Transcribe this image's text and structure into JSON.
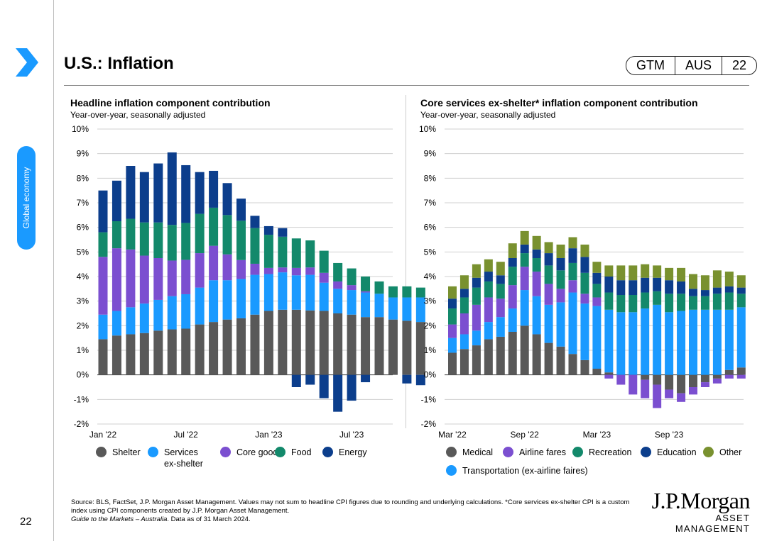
{
  "header": {
    "title": "U.S.: Inflation",
    "badge": [
      "GTM",
      "AUS",
      "22"
    ]
  },
  "sidebar": {
    "section_label": "Global economy",
    "page_number": "22"
  },
  "footer": {
    "source_line1": "Source: BLS, FactSet, J.P. Morgan Asset Management. Values may not sum to headline CPI figures due to rounding and underlying calculations. *Core services ex-shelter CPI is a custom index using CPI components created by J.P. Morgan Asset Management.",
    "guide": "Guide to the Markets – Australia",
    "data_as_of": ". Data as of 31 March 2024."
  },
  "logo": {
    "name": "J.P.Morgan",
    "sub": "ASSET MANAGEMENT"
  },
  "colors": {
    "shelter": "#595959",
    "services": "#1a9aff",
    "core_goods": "#7b4fd0",
    "food": "#13896b",
    "energy": "#0c3e8c",
    "medical": "#595959",
    "airline": "#7b4fd0",
    "transport": "#1a9aff",
    "recreation": "#13896b",
    "education": "#0c3e8c",
    "other": "#79912f"
  },
  "chart_data": [
    {
      "type": "bar",
      "stacked": true,
      "title": "Headline inflation component contribution",
      "subtitle": "Year-over-year, seasonally adjusted",
      "ylim": [
        -2,
        10
      ],
      "yticks": [
        "10%",
        "9%",
        "8%",
        "7%",
        "6%",
        "5%",
        "4%",
        "3%",
        "2%",
        "1%",
        "0%",
        "-1%",
        "-2%"
      ],
      "x_tick_labels": [
        {
          "label": "Jan '22",
          "index": 0
        },
        {
          "label": "Jul '22",
          "index": 6
        },
        {
          "label": "Jan '23",
          "index": 12
        },
        {
          "label": "Jul '23",
          "index": 18
        }
      ],
      "categories": [
        "Jan 22",
        "Feb 22",
        "Mar 22",
        "Apr 22",
        "May 22",
        "Jun 22",
        "Jul 22",
        "Aug 22",
        "Sep 22",
        "Oct 22",
        "Nov 22",
        "Dec 22",
        "Jan 23",
        "Feb 23",
        "Mar 23",
        "Apr 23",
        "May 23",
        "Jun 23",
        "Jul 23",
        "Aug 23",
        "Sep 23",
        "Oct 23",
        "Nov 23",
        "Dec 23"
      ],
      "series": [
        {
          "name": "Shelter",
          "color_key": "shelter",
          "values": [
            1.45,
            1.6,
            1.65,
            1.7,
            1.8,
            1.85,
            1.88,
            2.05,
            2.15,
            2.25,
            2.3,
            2.45,
            2.6,
            2.65,
            2.65,
            2.62,
            2.6,
            2.5,
            2.45,
            2.35,
            2.35,
            2.25,
            2.2,
            2.15
          ]
        },
        {
          "name": "Services ex-shelter",
          "color_key": "services",
          "values": [
            1.0,
            1.0,
            1.1,
            1.2,
            1.25,
            1.35,
            1.4,
            1.5,
            1.7,
            1.6,
            1.6,
            1.62,
            1.5,
            1.52,
            1.4,
            1.45,
            1.15,
            1.0,
            1.0,
            1.0,
            0.95,
            0.9,
            0.95,
            1.0
          ]
        },
        {
          "name": "Core goods",
          "color_key": "core_goods",
          "values": [
            2.35,
            2.55,
            2.35,
            1.95,
            1.7,
            1.45,
            1.4,
            1.4,
            1.4,
            1.05,
            0.77,
            0.45,
            0.25,
            0.2,
            0.3,
            0.3,
            0.4,
            0.3,
            0.2,
            0.05,
            0,
            0,
            0,
            0
          ]
        },
        {
          "name": "Food",
          "color_key": "food",
          "values": [
            1.0,
            1.1,
            1.25,
            1.35,
            1.45,
            1.45,
            1.5,
            1.6,
            1.55,
            1.6,
            1.6,
            1.45,
            1.35,
            1.25,
            1.2,
            1.1,
            0.9,
            0.75,
            0.68,
            0.6,
            0.5,
            0.45,
            0.45,
            0.4
          ]
        },
        {
          "name": "Energy",
          "color_key": "energy",
          "values": [
            1.7,
            1.65,
            2.15,
            2.05,
            2.4,
            2.95,
            2.35,
            1.7,
            1.5,
            1.3,
            0.9,
            0.5,
            0.35,
            0.35,
            0,
            0,
            0,
            0,
            0,
            0,
            0,
            0,
            0,
            0
          ]
        },
        {
          "name": "Energy (negative)",
          "color_key": "energy",
          "values": [
            0,
            0,
            0,
            0,
            0,
            0,
            0,
            0,
            0,
            0,
            0,
            0,
            0,
            0,
            -0.5,
            -0.4,
            -0.95,
            -1.5,
            -1.05,
            -0.3,
            0,
            0,
            -0.35,
            -0.42
          ]
        }
      ],
      "legend": [
        {
          "label": "Shelter",
          "color_key": "shelter"
        },
        {
          "label": "Services ex-shelter",
          "color_key": "services"
        },
        {
          "label": "Core goods",
          "color_key": "core_goods"
        },
        {
          "label": "Food",
          "color_key": "food"
        },
        {
          "label": "Energy",
          "color_key": "energy"
        }
      ]
    },
    {
      "type": "bar",
      "stacked": true,
      "title": "Core services ex-shelter* inflation component contribution",
      "subtitle": "Year-over-year, seasonally adjusted",
      "ylim": [
        -2,
        10
      ],
      "yticks": [
        "10%",
        "9%",
        "8%",
        "7%",
        "6%",
        "5%",
        "4%",
        "3%",
        "2%",
        "1%",
        "0%",
        "-1%",
        "-2%"
      ],
      "x_tick_labels": [
        {
          "label": "Mar '22",
          "index": 0
        },
        {
          "label": "Sep '22",
          "index": 6
        },
        {
          "label": "Mar '23",
          "index": 12
        },
        {
          "label": "Sep '23",
          "index": 18
        }
      ],
      "categories": [
        "Mar 22",
        "Apr 22",
        "May 22",
        "Jun 22",
        "Jul 22",
        "Aug 22",
        "Sep 22",
        "Oct 22",
        "Nov 22",
        "Dec 22",
        "Jan 23",
        "Feb 23",
        "Mar 23",
        "Apr 23",
        "May 23",
        "Jun 23",
        "Jul 23",
        "Aug 23",
        "Sep 23",
        "Oct 23",
        "Nov 23",
        "Dec 23",
        "Jan 24",
        "Feb 24",
        "Mar 24"
      ],
      "series": [
        {
          "name": "Medical",
          "color_key": "medical",
          "values": [
            0.9,
            1.05,
            1.2,
            1.45,
            1.55,
            1.75,
            2.0,
            1.65,
            1.3,
            1.15,
            0.85,
            0.6,
            0.25,
            0.1,
            0,
            0,
            0,
            0,
            0,
            0,
            0,
            0,
            0,
            0.2,
            0.3
          ]
        },
        {
          "name": "Medical (negative)",
          "color_key": "medical",
          "values": [
            0,
            0,
            0,
            0,
            0,
            0,
            0,
            0,
            0,
            0,
            0,
            0,
            0,
            0,
            0,
            0,
            -0.2,
            -0.4,
            -0.6,
            -0.75,
            -0.5,
            -0.3,
            -0.15,
            0,
            0
          ]
        },
        {
          "name": "Transportation (ex-airline faires)",
          "color_key": "transport",
          "values": [
            0.6,
            0.6,
            0.6,
            0.7,
            0.8,
            0.95,
            1.45,
            1.55,
            1.55,
            1.8,
            2.5,
            2.3,
            2.55,
            2.55,
            2.55,
            2.55,
            2.7,
            2.85,
            2.55,
            2.6,
            2.65,
            2.65,
            2.65,
            2.45,
            2.45
          ]
        },
        {
          "name": "Airline fares",
          "color_key": "airline",
          "values": [
            0.55,
            0.85,
            1.05,
            1.0,
            0.75,
            0.95,
            0.95,
            1.0,
            0.85,
            0.55,
            0.5,
            0.4,
            0.35,
            0,
            0,
            0,
            0,
            0,
            0,
            0,
            0,
            0,
            0,
            0,
            0
          ]
        },
        {
          "name": "Airline fares (negative)",
          "color_key": "airline",
          "values": [
            0,
            0,
            0,
            0,
            0,
            0,
            0,
            0,
            0,
            0,
            0,
            0,
            0,
            -0.15,
            -0.4,
            -0.8,
            -0.75,
            -0.95,
            -0.35,
            -0.35,
            -0.3,
            -0.2,
            -0.2,
            -0.15,
            -0.15
          ]
        },
        {
          "name": "Recreation",
          "color_key": "recreation",
          "values": [
            0.65,
            0.65,
            0.7,
            0.65,
            0.6,
            0.75,
            0.55,
            0.55,
            0.75,
            0.75,
            0.7,
            0.85,
            0.55,
            0.7,
            0.7,
            0.7,
            0.65,
            0.55,
            0.75,
            0.7,
            0.55,
            0.55,
            0.65,
            0.7,
            0.55
          ]
        },
        {
          "name": "Education",
          "color_key": "education",
          "values": [
            0.4,
            0.35,
            0.4,
            0.4,
            0.35,
            0.35,
            0.35,
            0.35,
            0.5,
            0.5,
            0.6,
            0.65,
            0.45,
            0.65,
            0.6,
            0.6,
            0.6,
            0.55,
            0.55,
            0.5,
            0.3,
            0.25,
            0.25,
            0.25,
            0.25
          ]
        },
        {
          "name": "Other",
          "color_key": "other",
          "values": [
            0.5,
            0.55,
            0.55,
            0.5,
            0.55,
            0.6,
            0.55,
            0.55,
            0.45,
            0.55,
            0.45,
            0.5,
            0.45,
            0.45,
            0.6,
            0.6,
            0.55,
            0.5,
            0.5,
            0.55,
            0.6,
            0.6,
            0.7,
            0.6,
            0.5
          ]
        }
      ],
      "legend": [
        {
          "label": "Medical",
          "color_key": "medical"
        },
        {
          "label": "Airline fares",
          "color_key": "airline"
        },
        {
          "label": "Recreation",
          "color_key": "recreation"
        },
        {
          "label": "Education",
          "color_key": "education"
        },
        {
          "label": "Other",
          "color_key": "other"
        },
        {
          "label": "Transportation (ex-airline faires)",
          "color_key": "transport"
        }
      ]
    }
  ]
}
